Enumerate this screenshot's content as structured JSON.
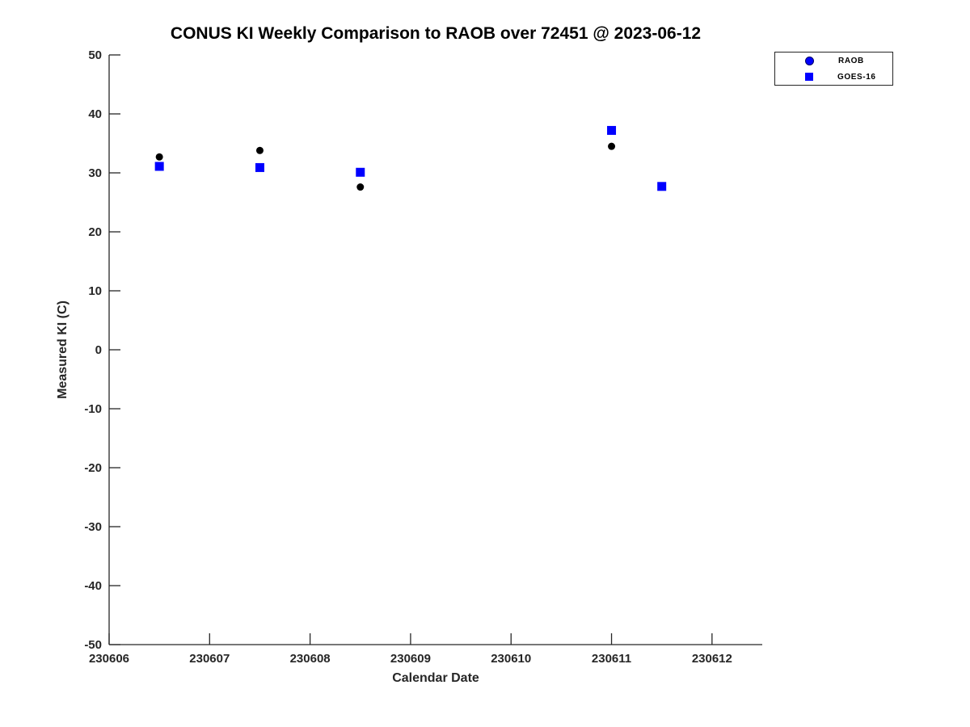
{
  "chart_data": {
    "type": "scatter",
    "title": "CONUS KI Weekly Comparison to RAOB over 72451 @ 2023-06-12",
    "xlabel": "Calendar Date",
    "ylabel": "Measured KI (C)",
    "xlim": [
      230606,
      230612.5
    ],
    "ylim": [
      -50,
      50
    ],
    "x_ticks": [
      "230606",
      "230607",
      "230608",
      "230609",
      "230610",
      "230611",
      "230612"
    ],
    "x_tick_values": [
      230606,
      230607,
      230608,
      230609,
      230610,
      230611,
      230612
    ],
    "y_ticks": [
      "50",
      "40",
      "30",
      "20",
      "10",
      "0",
      "-10",
      "-20",
      "-30",
      "-40",
      "-50"
    ],
    "y_tick_values": [
      50,
      40,
      30,
      20,
      10,
      0,
      -10,
      -20,
      -30,
      -40,
      -50
    ],
    "grid": false,
    "legend_position": "top-right-outside",
    "series": [
      {
        "name": "RAOB",
        "marker": "circle",
        "marker_color": "#000000",
        "legend_marker_color": "#0000ff",
        "x": [
          230606.5,
          230607.5,
          230608.5,
          230611.0,
          230611.5
        ],
        "y": [
          32.7,
          33.8,
          27.6,
          34.5,
          27.7
        ]
      },
      {
        "name": "GOES-16",
        "marker": "square",
        "marker_color": "#0000ff",
        "legend_marker_color": "#0000ff",
        "x": [
          230606.5,
          230607.5,
          230608.5,
          230611.0,
          230611.5
        ],
        "y": [
          31.1,
          30.9,
          30.1,
          37.2,
          27.7
        ]
      }
    ],
    "axis_color": "#262626"
  }
}
